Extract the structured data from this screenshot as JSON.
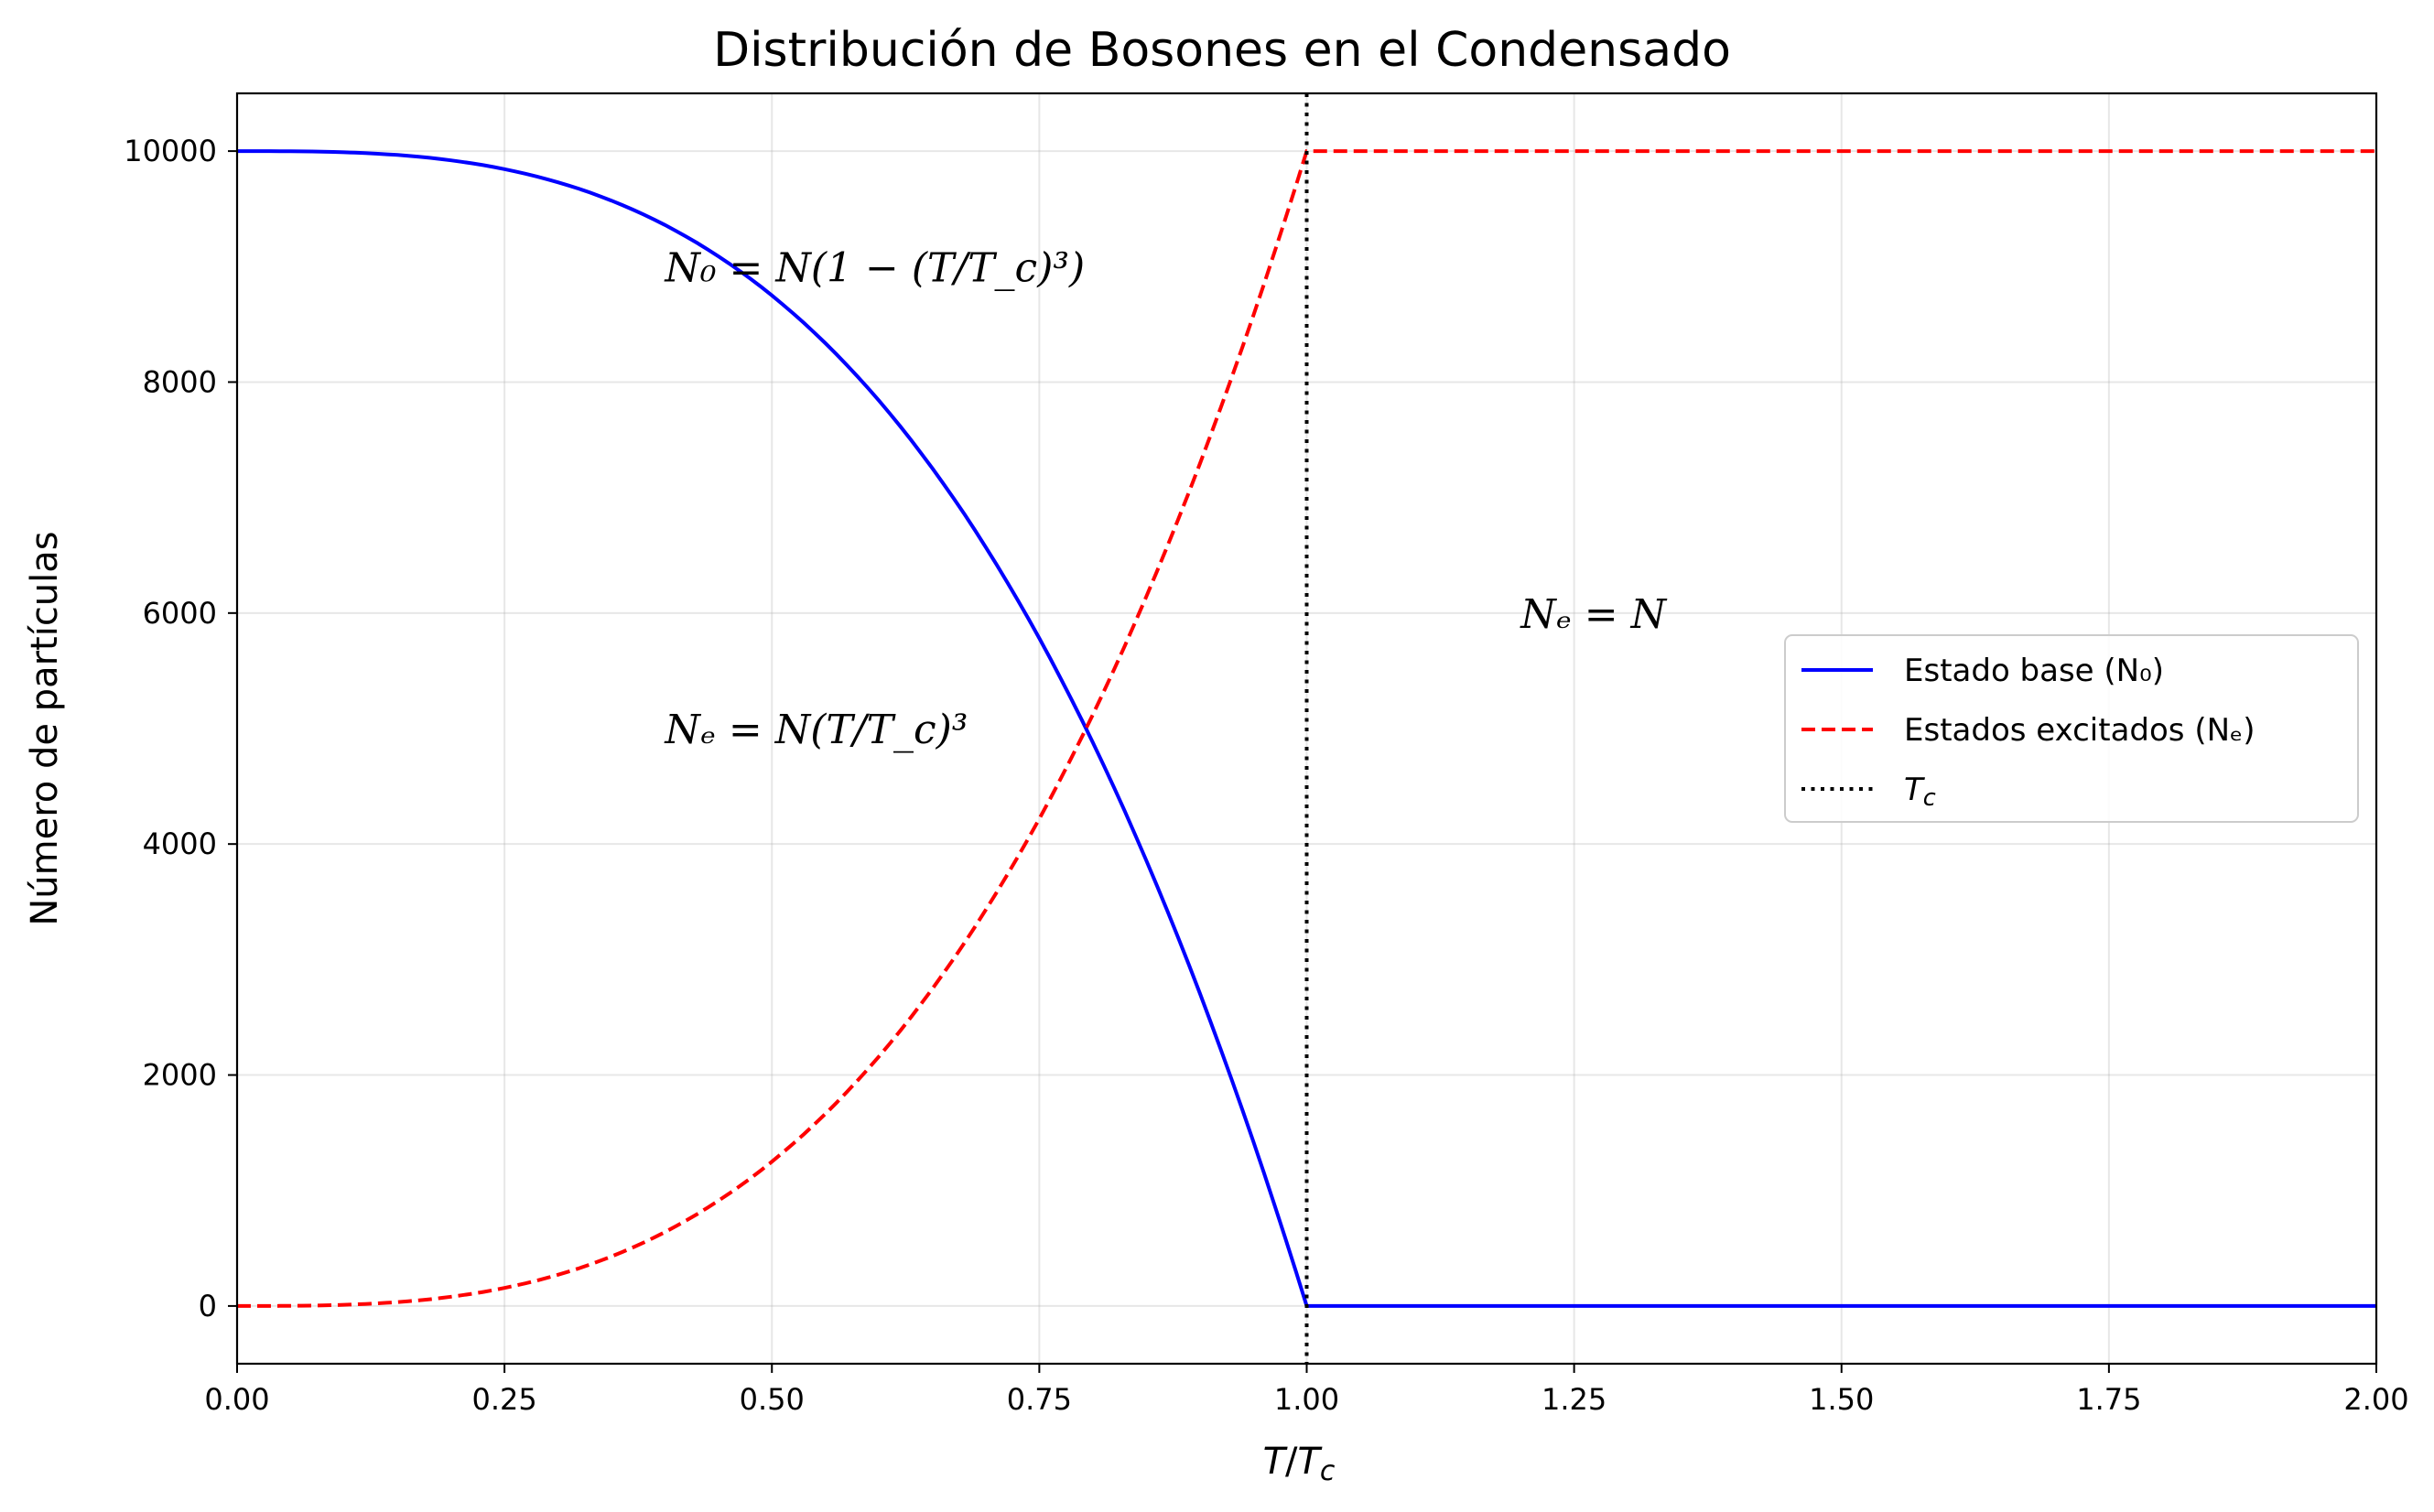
{
  "chart_data": {
    "type": "line",
    "title": "Distribución de Bosones en el Condensado",
    "xlabel": "T/T_c",
    "ylabel": "Número de partículas",
    "xlim": [
      0.0,
      2.0
    ],
    "ylim": [
      -500,
      10500
    ],
    "xticks": [
      "0.00",
      "0.25",
      "0.50",
      "0.75",
      "1.00",
      "1.25",
      "1.50",
      "1.75",
      "2.00"
    ],
    "yticks": [
      "0",
      "2000",
      "4000",
      "6000",
      "8000",
      "10000"
    ],
    "grid": true,
    "legend_position": "center-right",
    "N": 10000,
    "series": [
      {
        "name": "Estado base (N₀)",
        "color": "#0000ff",
        "style": "solid",
        "x": [
          0.0,
          0.1,
          0.2,
          0.3,
          0.4,
          0.5,
          0.6,
          0.7,
          0.8,
          0.9,
          1.0,
          1.25,
          1.5,
          1.75,
          2.0
        ],
        "y": [
          10000,
          9990,
          9920,
          9730,
          9360,
          8750,
          7840,
          6570,
          4880,
          2710,
          0,
          0,
          0,
          0,
          0
        ]
      },
      {
        "name": "Estados excitados (Nₑ)",
        "color": "#ff0000",
        "style": "dashed",
        "x": [
          0.0,
          0.1,
          0.2,
          0.3,
          0.4,
          0.5,
          0.6,
          0.7,
          0.8,
          0.9,
          1.0,
          1.25,
          1.5,
          1.75,
          2.0
        ],
        "y": [
          0,
          10,
          80,
          270,
          640,
          1250,
          2160,
          3430,
          5120,
          7290,
          10000,
          10000,
          10000,
          10000,
          10000
        ]
      }
    ],
    "vline": {
      "x": 1.0,
      "label": "T_c",
      "color": "#000000",
      "style": "dotted"
    },
    "annotations": [
      {
        "text": "N₀ = N(1 − (T/T_c)³)",
        "x": 0.4,
        "y": 9000
      },
      {
        "text": "Nₑ = N(T/T_c)³",
        "x": 0.4,
        "y": 5000
      },
      {
        "text": "Nₑ = N",
        "x": 1.2,
        "y": 6000
      }
    ]
  }
}
